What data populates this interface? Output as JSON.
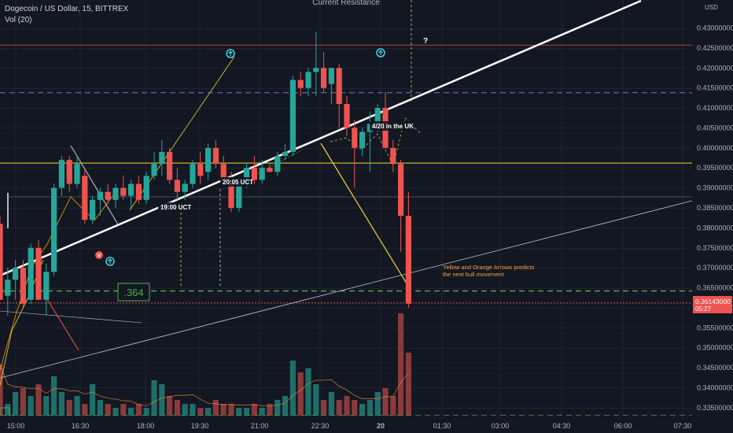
{
  "header": {
    "symbol_line": "Dogecoin / US Dollar, 15, BITTREX",
    "volume_line": "Vol (20)",
    "top_annotation": "Current Resistance",
    "currency": "USD"
  },
  "chart_data": {
    "type": "candlestick",
    "price_ticks": [
      "0.43000000",
      "0.42500000",
      "0.42000000",
      "0.41500000",
      "0.41000000",
      "0.40500000",
      "0.40000000",
      "0.39500000",
      "0.39000000",
      "0.38500000",
      "0.38000000",
      "0.37500000",
      "0.37000000",
      "0.36500000",
      "0.36000000",
      "0.35500000",
      "0.35000000",
      "0.34500000",
      "0.34000000",
      "0.33500000"
    ],
    "time_ticks": [
      "15:00",
      "16:30",
      "18:00",
      "19:30",
      "21:00",
      "22:30",
      "20",
      "01:30",
      "03:00",
      "04:30",
      "06:00",
      "07:30"
    ],
    "ylim": [
      0.333,
      0.437
    ],
    "current_price": "0.36143000",
    "countdown": "05:27",
    "candles": [
      {
        "o": 0.381,
        "h": 0.383,
        "l": 0.362,
        "c": 0.362
      },
      {
        "o": 0.363,
        "h": 0.37,
        "l": 0.358,
        "c": 0.367
      },
      {
        "o": 0.367,
        "h": 0.372,
        "l": 0.362,
        "c": 0.37
      },
      {
        "o": 0.37,
        "h": 0.372,
        "l": 0.36,
        "c": 0.361
      },
      {
        "o": 0.362,
        "h": 0.376,
        "l": 0.361,
        "c": 0.375
      },
      {
        "o": 0.375,
        "h": 0.377,
        "l": 0.362,
        "c": 0.362
      },
      {
        "o": 0.362,
        "h": 0.371,
        "l": 0.358,
        "c": 0.369
      },
      {
        "o": 0.369,
        "h": 0.391,
        "l": 0.368,
        "c": 0.39
      },
      {
        "o": 0.39,
        "h": 0.398,
        "l": 0.388,
        "c": 0.397
      },
      {
        "o": 0.397,
        "h": 0.398,
        "l": 0.389,
        "c": 0.391
      },
      {
        "o": 0.391,
        "h": 0.398,
        "l": 0.39,
        "c": 0.396
      },
      {
        "o": 0.393,
        "h": 0.395,
        "l": 0.381,
        "c": 0.382
      },
      {
        "o": 0.382,
        "h": 0.388,
        "l": 0.381,
        "c": 0.387
      },
      {
        "o": 0.387,
        "h": 0.39,
        "l": 0.383,
        "c": 0.389
      },
      {
        "o": 0.389,
        "h": 0.391,
        "l": 0.386,
        "c": 0.387
      },
      {
        "o": 0.387,
        "h": 0.391,
        "l": 0.385,
        "c": 0.39
      },
      {
        "o": 0.39,
        "h": 0.393,
        "l": 0.387,
        "c": 0.388
      },
      {
        "o": 0.388,
        "h": 0.392,
        "l": 0.385,
        "c": 0.391
      },
      {
        "o": 0.391,
        "h": 0.393,
        "l": 0.386,
        "c": 0.387
      },
      {
        "o": 0.387,
        "h": 0.394,
        "l": 0.386,
        "c": 0.393
      },
      {
        "o": 0.393,
        "h": 0.399,
        "l": 0.392,
        "c": 0.396
      },
      {
        "o": 0.396,
        "h": 0.402,
        "l": 0.393,
        "c": 0.399
      },
      {
        "o": 0.399,
        "h": 0.4,
        "l": 0.391,
        "c": 0.392
      },
      {
        "o": 0.392,
        "h": 0.395,
        "l": 0.387,
        "c": 0.389
      },
      {
        "o": 0.389,
        "h": 0.392,
        "l": 0.387,
        "c": 0.391
      },
      {
        "o": 0.391,
        "h": 0.397,
        "l": 0.39,
        "c": 0.396
      },
      {
        "o": 0.396,
        "h": 0.399,
        "l": 0.391,
        "c": 0.393
      },
      {
        "o": 0.394,
        "h": 0.401,
        "l": 0.392,
        "c": 0.4
      },
      {
        "o": 0.4,
        "h": 0.402,
        "l": 0.395,
        "c": 0.396
      },
      {
        "o": 0.396,
        "h": 0.398,
        "l": 0.391,
        "c": 0.392
      },
      {
        "o": 0.392,
        "h": 0.394,
        "l": 0.384,
        "c": 0.385
      },
      {
        "o": 0.385,
        "h": 0.392,
        "l": 0.384,
        "c": 0.391
      },
      {
        "o": 0.391,
        "h": 0.396,
        "l": 0.39,
        "c": 0.395
      },
      {
        "o": 0.395,
        "h": 0.398,
        "l": 0.391,
        "c": 0.392
      },
      {
        "o": 0.392,
        "h": 0.397,
        "l": 0.391,
        "c": 0.395
      },
      {
        "o": 0.395,
        "h": 0.396,
        "l": 0.394,
        "c": 0.394
      },
      {
        "o": 0.394,
        "h": 0.399,
        "l": 0.393,
        "c": 0.398
      },
      {
        "o": 0.398,
        "h": 0.401,
        "l": 0.397,
        "c": 0.399
      },
      {
        "o": 0.399,
        "h": 0.418,
        "l": 0.398,
        "c": 0.417
      },
      {
        "o": 0.417,
        "h": 0.419,
        "l": 0.413,
        "c": 0.415
      },
      {
        "o": 0.415,
        "h": 0.42,
        "l": 0.413,
        "c": 0.419
      },
      {
        "o": 0.419,
        "h": 0.429,
        "l": 0.413,
        "c": 0.42
      },
      {
        "o": 0.42,
        "h": 0.424,
        "l": 0.414,
        "c": 0.415
      },
      {
        "o": 0.416,
        "h": 0.42,
        "l": 0.411,
        "c": 0.42
      },
      {
        "o": 0.42,
        "h": 0.421,
        "l": 0.405,
        "c": 0.411
      },
      {
        "o": 0.411,
        "h": 0.413,
        "l": 0.403,
        "c": 0.405
      },
      {
        "o": 0.405,
        "h": 0.407,
        "l": 0.39,
        "c": 0.4
      },
      {
        "o": 0.4,
        "h": 0.405,
        "l": 0.398,
        "c": 0.404
      },
      {
        "o": 0.404,
        "h": 0.409,
        "l": 0.394,
        "c": 0.406
      },
      {
        "o": 0.406,
        "h": 0.411,
        "l": 0.404,
        "c": 0.41
      },
      {
        "o": 0.41,
        "h": 0.414,
        "l": 0.4,
        "c": 0.4
      },
      {
        "o": 0.4,
        "h": 0.402,
        "l": 0.394,
        "c": 0.396
      },
      {
        "o": 0.396,
        "h": 0.397,
        "l": 0.374,
        "c": 0.383
      },
      {
        "o": 0.383,
        "h": 0.389,
        "l": 0.36,
        "c": 0.361
      }
    ],
    "volumes": [
      13,
      3,
      6,
      7,
      5,
      8,
      5,
      10,
      6,
      4,
      5,
      3,
      8,
      4,
      3,
      2,
      3,
      2,
      3,
      2,
      9,
      8,
      5,
      4,
      3,
      3,
      2,
      2,
      4,
      3,
      3,
      2,
      2,
      3,
      2,
      3,
      4,
      5,
      14,
      11,
      12,
      8,
      4,
      6,
      4,
      5,
      4,
      3,
      4,
      6,
      7,
      5,
      26,
      16
    ],
    "volume_colors": [
      "r",
      "g",
      "g",
      "r",
      "g",
      "r",
      "g",
      "g",
      "g",
      "r",
      "g",
      "r",
      "g",
      "g",
      "r",
      "g",
      "r",
      "g",
      "r",
      "g",
      "g",
      "g",
      "r",
      "r",
      "g",
      "g",
      "r",
      "g",
      "r",
      "r",
      "r",
      "g",
      "g",
      "r",
      "g",
      "r",
      "g",
      "g",
      "g",
      "r",
      "g",
      "g",
      "r",
      "g",
      "r",
      "r",
      "r",
      "g",
      "g",
      "g",
      "r",
      "r",
      "r",
      "r"
    ],
    "vol_max": 26,
    "horizontal_levels": [
      {
        "price": 0.4257,
        "color": "#b83b3b",
        "style": "solid"
      },
      {
        "price": 0.4138,
        "color": "#6f78c9",
        "style": "dashed"
      },
      {
        "price": 0.3962,
        "color": "#f0d43a",
        "style": "solid"
      },
      {
        "price": 0.3642,
        "color": "#4caf50",
        "style": "dashed"
      },
      {
        "price": 0.3612,
        "color": "#e0505c",
        "style": "dotted"
      }
    ],
    "box_label": ".364"
  },
  "annotations": {
    "uk_note": "4/20 in the UK",
    "t1905": "19:00 UCT",
    "t2005": "20:05 UCT",
    "question": "?",
    "prediction_line1": "Yellow and Orange Arrows predicts",
    "prediction_line2": "the next bull movement"
  },
  "colors": {
    "bg": "#131722",
    "up": "#26a69a",
    "down": "#ef5350",
    "up_vol": "#1f6e69",
    "down_vol": "#8a3a3c",
    "grid": "#1f2433",
    "axis_text": "#b2b5be",
    "trend_white": "#ffffff",
    "trend_thin": "#c7c9cf",
    "yellow": "#f0d43a",
    "orange": "#ff9800",
    "cyan": "#4dd0e1"
  }
}
